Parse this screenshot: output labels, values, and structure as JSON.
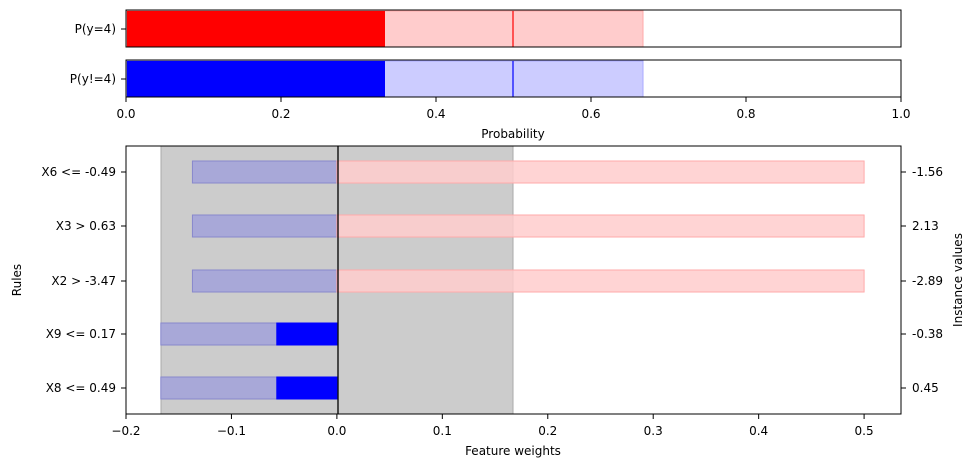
{
  "chart_data": [
    {
      "type": "bar",
      "orientation": "horizontal",
      "categories": [
        "P(y=4)",
        "P(y!=4)"
      ],
      "series": [
        {
          "values": [
            0.333,
            0.333
          ],
          "color": "#ff0000"
        },
        {
          "values": [
            0.667,
            0.667
          ],
          "color": "#ffcccc"
        }
      ],
      "colors": {
        "P(y=4)": {
          "solid": "#ff0000",
          "light": "#ffcccc"
        },
        "P(y!=4)": {
          "solid": "#0000ff",
          "light": "#ccccff"
        }
      },
      "threshold": 0.5,
      "xlim": [
        0,
        1
      ],
      "xticks": [
        "0.0",
        "0.2",
        "0.4",
        "0.6",
        "0.8",
        "1.0"
      ],
      "xlabel": "Probability"
    },
    {
      "type": "bar",
      "orientation": "horizontal",
      "categories": [
        "X6 <= -0.49",
        "X3 > 0.63",
        "X2 > -3.47",
        "X9 <= 0.17",
        "X8 <= 0.49"
      ],
      "instance_values": [
        "-1.56",
        "2.13",
        "-2.89",
        "-0.38",
        "0.45"
      ],
      "series": [
        {
          "values": [
            -0.137,
            -0.137,
            -0.137,
            -0.167,
            -0.167
          ],
          "color": "#a8a8d8"
        },
        {
          "values": [
            0,
            0,
            0,
            -0.057,
            -0.057
          ],
          "color": "#0000ff"
        },
        {
          "values": [
            0.5,
            0.5,
            0.5,
            0,
            0
          ],
          "color": "#ffcccc"
        }
      ],
      "shaded_interval": [
        -0.167,
        0.167
      ],
      "xlim": [
        -0.2,
        0.535
      ],
      "xticks": [
        -0.2,
        -0.1,
        0.0,
        0.1,
        0.2,
        0.3,
        0.4,
        0.5
      ],
      "xtick_labels": [
        "−0.2",
        "−0.1",
        "0.0",
        "0.1",
        "0.2",
        "0.3",
        "0.4",
        "0.5"
      ],
      "xlabel": "Feature weights",
      "ylabel": "Rules",
      "ylabel_right": "Instance values"
    }
  ]
}
